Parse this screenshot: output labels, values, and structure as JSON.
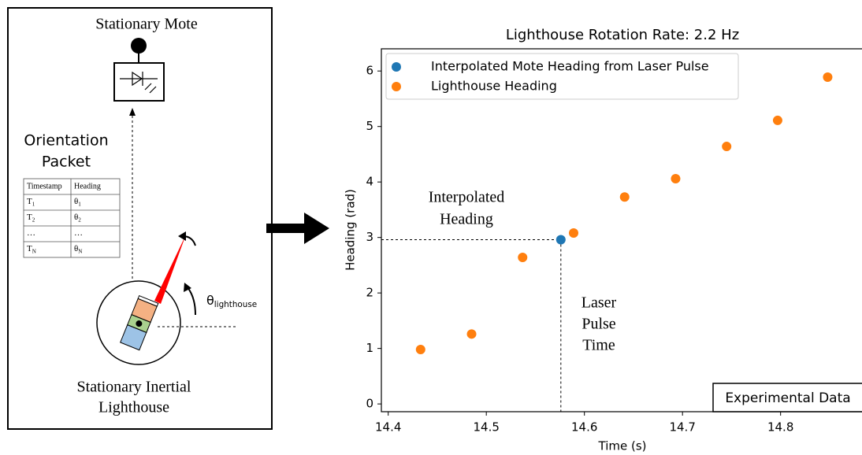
{
  "diagram": {
    "mote_label": "Stationary Mote",
    "packet_label": [
      "Orientation",
      "Packet"
    ],
    "table": {
      "header": [
        "Timestamp",
        "Heading"
      ],
      "rows": [
        [
          {
            "base": "T",
            "sub": "1"
          },
          {
            "base": "θ",
            "sub": "1"
          }
        ],
        [
          {
            "base": "T",
            "sub": "2"
          },
          {
            "base": "θ",
            "sub": "2"
          }
        ],
        [
          {
            "base": "…",
            "sub": ""
          },
          {
            "base": "…",
            "sub": ""
          }
        ],
        [
          {
            "base": "T",
            "sub": "N"
          },
          {
            "base": "θ",
            "sub": "N"
          }
        ]
      ]
    },
    "angle_label": {
      "base": "θ",
      "sub": "lighthouse"
    },
    "lighthouse_label": [
      "Stationary Inertial",
      "Lighthouse"
    ]
  },
  "chart_data": {
    "type": "scatter",
    "title": "Lighthouse Rotation Rate: 2.2 Hz",
    "x_label": "Time (s)",
    "y_label": "Heading (rad)",
    "xlim": [
      14.393,
      14.883
    ],
    "ylim": [
      -0.14,
      6.4
    ],
    "xticks": [
      14.4,
      14.5,
      14.6,
      14.7,
      14.8
    ],
    "yticks": [
      0,
      1,
      2,
      3,
      4,
      5,
      6
    ],
    "legend": "upper left",
    "series": [
      {
        "name": "Interpolated Mote Heading from Laser Pulse",
        "color": "#1f77b4",
        "x": [
          14.576
        ],
        "values": [
          2.96
        ]
      },
      {
        "name": "Lighthouse Heading",
        "color": "#ff7f0e",
        "x": [
          14.433,
          14.485,
          14.537,
          14.589,
          14.641,
          14.693,
          14.745,
          14.797,
          14.848
        ],
        "values": [
          0.98,
          1.26,
          2.64,
          3.08,
          3.73,
          4.06,
          4.64,
          5.11,
          5.89
        ]
      }
    ],
    "annotations": [
      [
        "Interpolated",
        "Heading"
      ],
      [
        "Laser",
        "Pulse",
        "Time"
      ]
    ],
    "box_label": "Experimental Data"
  }
}
